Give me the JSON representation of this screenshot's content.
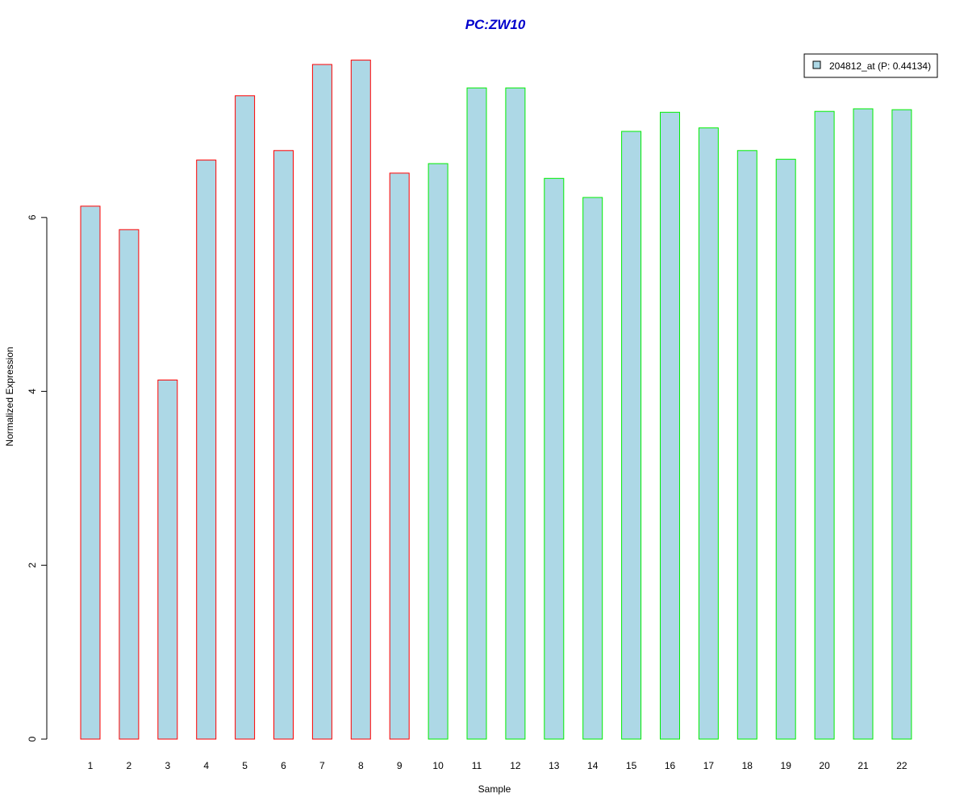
{
  "chart_data": {
    "type": "bar",
    "title": "PC:ZW10",
    "xlabel": "Sample",
    "ylabel": "Normalized Expression",
    "categories": [
      "1",
      "2",
      "3",
      "4",
      "5",
      "6",
      "7",
      "8",
      "9",
      "10",
      "11",
      "12",
      "13",
      "14",
      "15",
      "16",
      "17",
      "18",
      "19",
      "20",
      "21",
      "22"
    ],
    "values": [
      6.13,
      5.86,
      4.13,
      6.66,
      7.4,
      6.77,
      7.76,
      7.81,
      6.51,
      6.62,
      7.49,
      7.49,
      6.45,
      6.23,
      6.99,
      7.21,
      7.03,
      6.77,
      6.67,
      7.22,
      7.25,
      7.24
    ],
    "group_colors": [
      "#ff0000",
      "#ff0000",
      "#ff0000",
      "#ff0000",
      "#ff0000",
      "#ff0000",
      "#ff0000",
      "#ff0000",
      "#ff0000",
      "#00ee00",
      "#00ee00",
      "#00ee00",
      "#00ee00",
      "#00ee00",
      "#00ee00",
      "#00ee00",
      "#00ee00",
      "#00ee00",
      "#00ee00",
      "#00ee00",
      "#00ee00",
      "#00ee00"
    ],
    "y_ticks": [
      0,
      2,
      4,
      6
    ],
    "ylim": [
      0,
      7.95
    ],
    "legend": {
      "label": "204812_at (P: 0.44134)",
      "position": "top-right"
    },
    "fill_color": "#add8e6",
    "title_color": "#0000cc",
    "grid": false
  }
}
